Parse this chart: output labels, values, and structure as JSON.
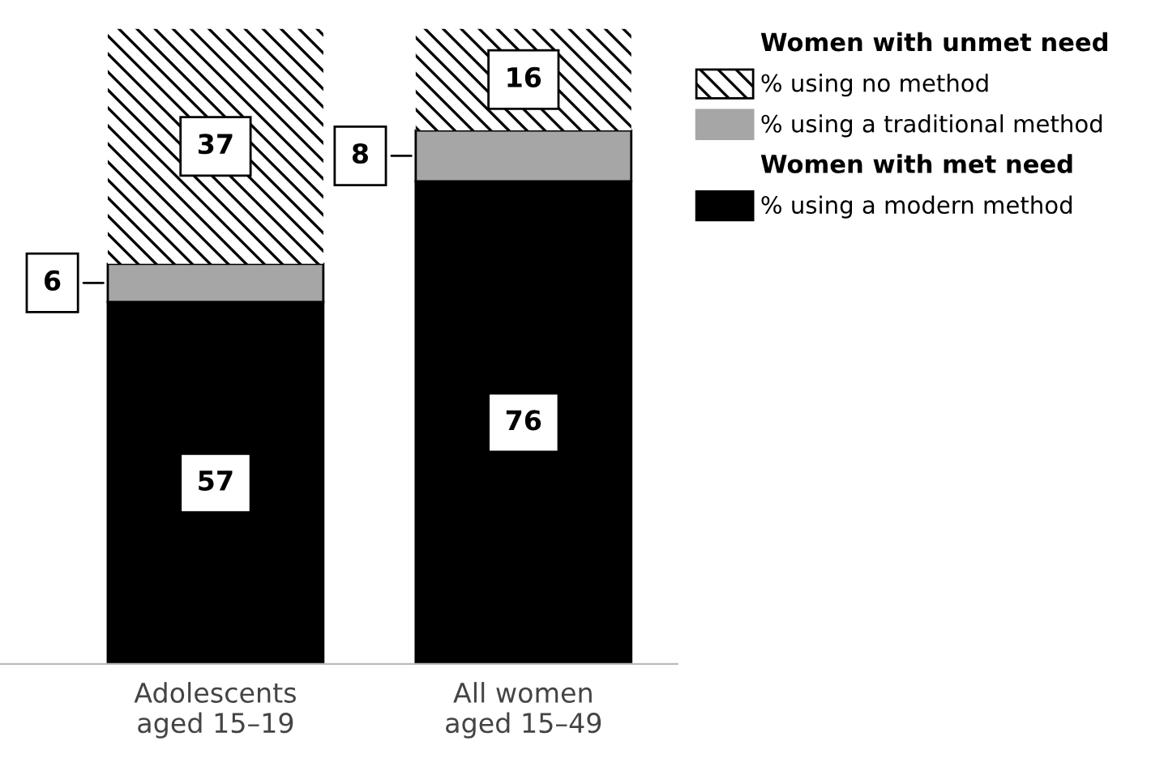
{
  "chart_data": {
    "type": "bar",
    "stacked": true,
    "data_labels": true,
    "legend": "top right",
    "categories": [
      "Adolescents\naged 15–19",
      "All women\naged 15–49"
    ],
    "series": [
      {
        "name": "% using a modern method",
        "color": "#000000",
        "values": [
          57,
          76
        ]
      },
      {
        "name": "% using a traditional method",
        "color": "#a6a6a6",
        "values": [
          6,
          8
        ]
      },
      {
        "name": "% using no method",
        "color": "#ffffff",
        "values": [
          37,
          16
        ]
      }
    ],
    "annotations": [
      "Women with unmet need",
      "Women with met need"
    ]
  }
}
